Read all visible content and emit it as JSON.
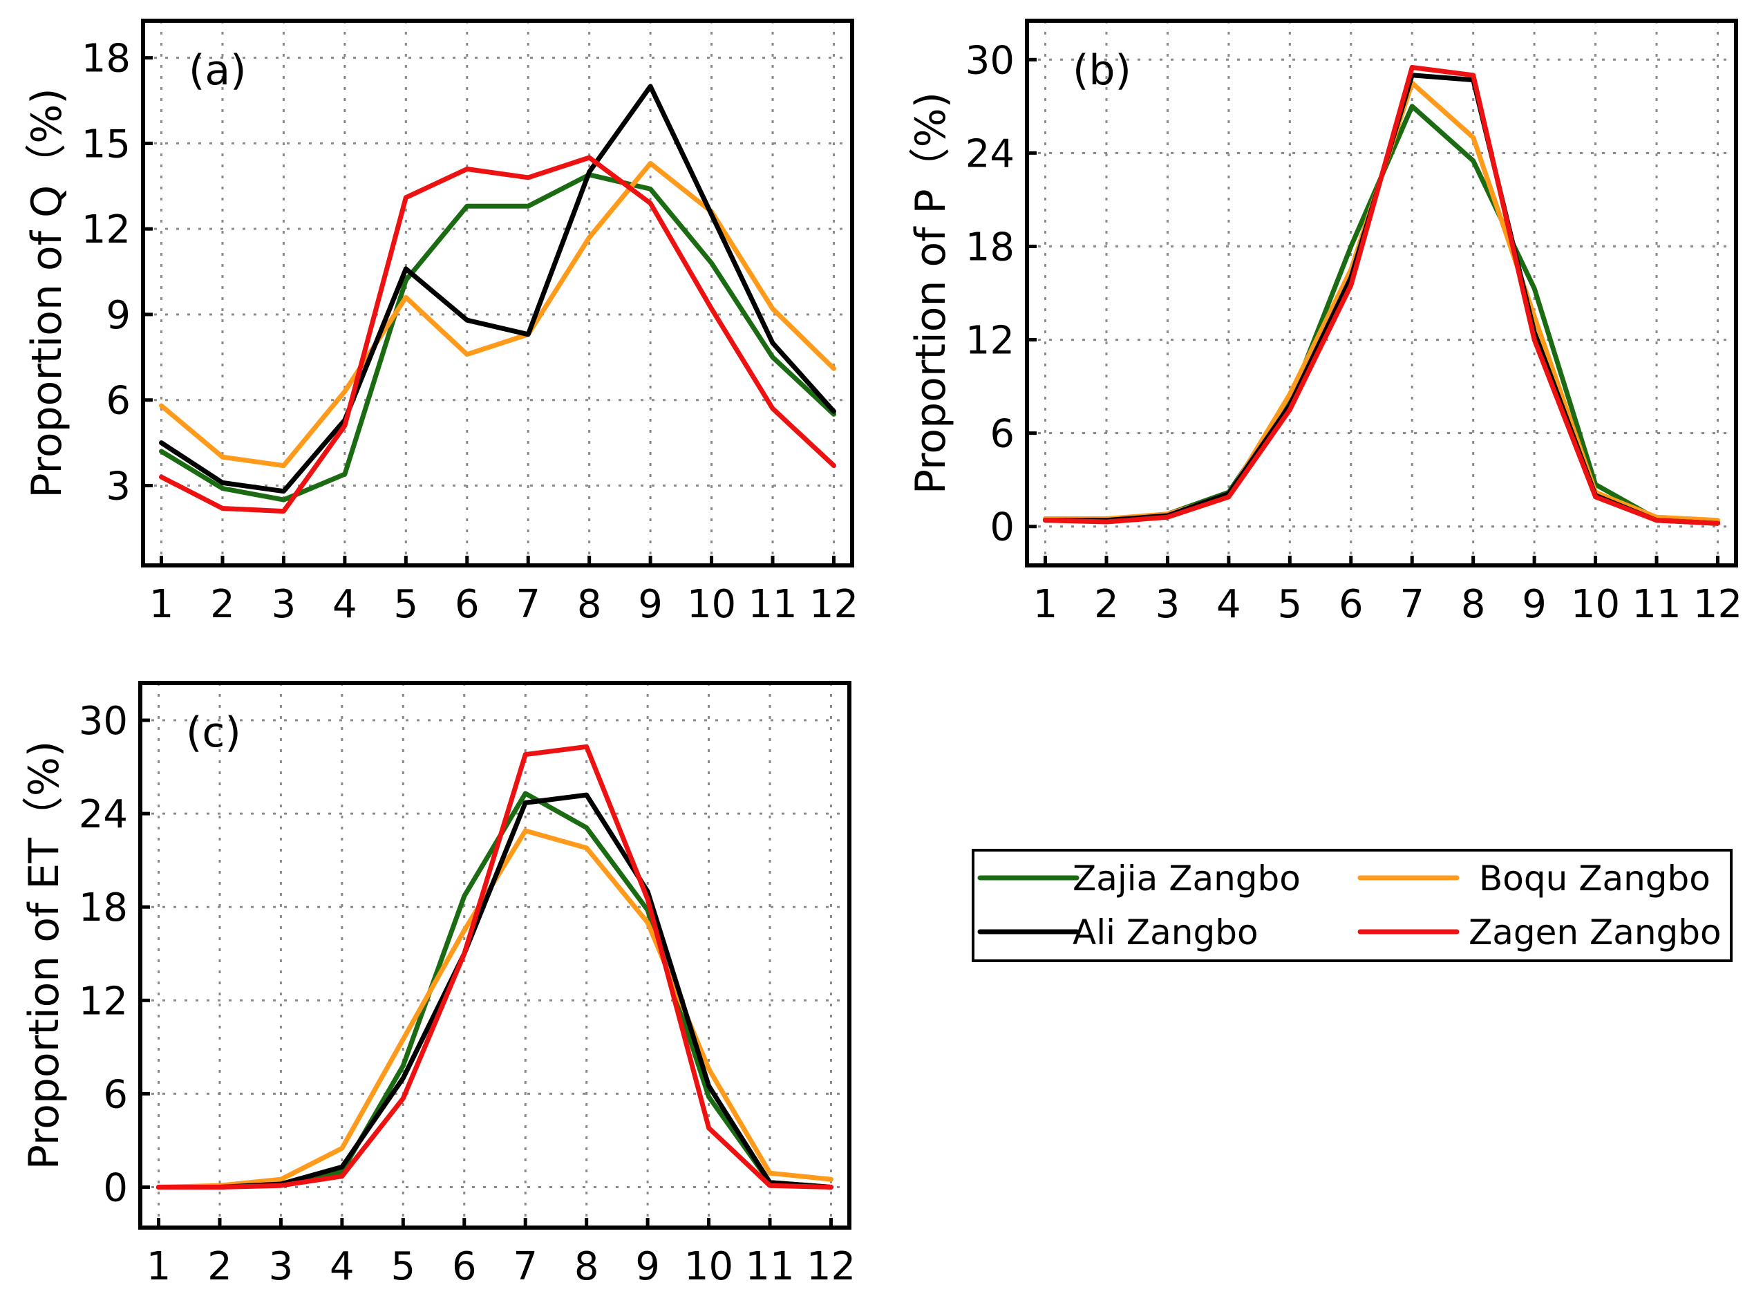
{
  "colors": {
    "Zajia Zangbo": "#1a6b12",
    "Boqu Zangbo": "#ff9a1a",
    "Ali  Zangbo": "#000000",
    "Zagen Zangbo": "#ee1111"
  },
  "legend": {
    "entries": [
      "Zajia Zangbo",
      "Boqu Zangbo",
      "Ali  Zangbo",
      "Zagen Zangbo"
    ]
  },
  "chart_data": [
    {
      "type": "line",
      "panel_tag": "(a)",
      "ylabel": "Proportion of Q（%)",
      "x": [
        1,
        2,
        3,
        4,
        5,
        6,
        7,
        8,
        9,
        10,
        11,
        12
      ],
      "xlim": [
        0.7,
        12.3
      ],
      "ylim": [
        0.2,
        19.3
      ],
      "yticks": [
        3,
        6,
        9,
        12,
        15,
        18
      ],
      "grid": true,
      "series": [
        {
          "name": "Zajia Zangbo",
          "values": [
            4.2,
            2.9,
            2.5,
            3.4,
            10.2,
            12.8,
            12.8,
            13.9,
            13.4,
            10.8,
            7.5,
            5.5
          ]
        },
        {
          "name": "Boqu Zangbo",
          "values": [
            5.8,
            4.0,
            3.7,
            6.3,
            9.6,
            7.6,
            8.3,
            11.7,
            14.3,
            12.6,
            9.2,
            7.1
          ]
        },
        {
          "name": "Ali  Zangbo",
          "values": [
            4.5,
            3.1,
            2.8,
            5.3,
            10.6,
            8.8,
            8.3,
            14.0,
            17.0,
            12.5,
            8.0,
            5.6
          ]
        },
        {
          "name": "Zagen Zangbo",
          "values": [
            3.3,
            2.2,
            2.1,
            5.1,
            13.1,
            14.1,
            13.8,
            14.5,
            12.9,
            9.2,
            5.7,
            3.7
          ]
        }
      ]
    },
    {
      "type": "line",
      "panel_tag": "(b)",
      "ylabel": "Proportion of P（%)",
      "x": [
        1,
        2,
        3,
        4,
        5,
        6,
        7,
        8,
        9,
        10,
        11,
        12
      ],
      "xlim": [
        0.7,
        12.3
      ],
      "ylim": [
        -2.5,
        32.5
      ],
      "yticks": [
        0,
        6,
        12,
        18,
        24,
        30
      ],
      "grid": true,
      "series": [
        {
          "name": "Zajia Zangbo",
          "values": [
            0.5,
            0.4,
            0.8,
            2.2,
            8.0,
            18.0,
            27.0,
            23.5,
            15.3,
            2.7,
            0.5,
            0.3
          ]
        },
        {
          "name": "Boqu Zangbo",
          "values": [
            0.5,
            0.5,
            0.8,
            2.0,
            8.5,
            16.5,
            28.5,
            25.0,
            13.5,
            2.2,
            0.6,
            0.4
          ]
        },
        {
          "name": "Ali  Zangbo",
          "values": [
            0.4,
            0.4,
            0.7,
            2.1,
            7.8,
            16.0,
            29.0,
            28.7,
            12.5,
            2.0,
            0.4,
            0.2
          ]
        },
        {
          "name": "Zagen Zangbo",
          "values": [
            0.4,
            0.3,
            0.6,
            1.9,
            7.5,
            15.5,
            29.5,
            29.0,
            12.0,
            1.9,
            0.4,
            0.2
          ]
        }
      ]
    },
    {
      "type": "line",
      "panel_tag": "(c)",
      "ylabel": "Proportion of ET（%)",
      "x": [
        1,
        2,
        3,
        4,
        5,
        6,
        7,
        8,
        9,
        10,
        11,
        12
      ],
      "xlim": [
        0.7,
        12.3
      ],
      "ylim": [
        -2.6,
        32.4
      ],
      "yticks": [
        0,
        6,
        12,
        18,
        24,
        30
      ],
      "grid": true,
      "series": [
        {
          "name": "Zajia Zangbo",
          "values": [
            0.0,
            0.0,
            0.2,
            1.0,
            7.8,
            18.7,
            25.3,
            23.1,
            17.8,
            5.8,
            0.3,
            0.0
          ]
        },
        {
          "name": "Boqu Zangbo",
          "values": [
            0.0,
            0.1,
            0.5,
            2.5,
            9.5,
            16.5,
            22.9,
            21.8,
            17.0,
            7.6,
            0.9,
            0.5
          ]
        },
        {
          "name": "Ali  Zangbo",
          "values": [
            0.0,
            0.0,
            0.2,
            1.3,
            7.0,
            15.0,
            24.7,
            25.2,
            19.0,
            6.5,
            0.3,
            0.0
          ]
        },
        {
          "name": "Zagen Zangbo",
          "values": [
            0.0,
            0.0,
            0.1,
            0.7,
            5.7,
            15.0,
            27.8,
            28.3,
            18.5,
            3.8,
            0.1,
            0.0
          ]
        }
      ]
    }
  ]
}
